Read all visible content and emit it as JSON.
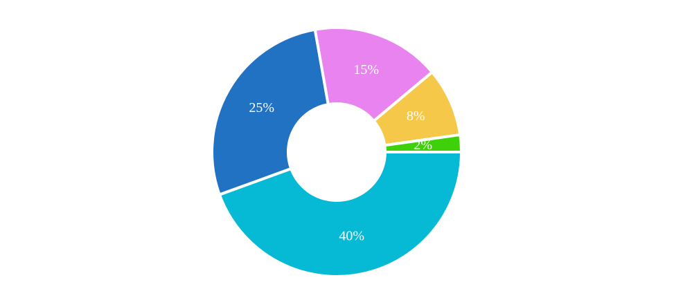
{
  "chart_data": {
    "type": "pie",
    "values": [
      40,
      25,
      15,
      8,
      2
    ],
    "value_labels": [
      "40%",
      "25%",
      "15%",
      "8%",
      "2%"
    ],
    "colors": [
      "#06b9d4",
      "#2272c4",
      "#e883f0",
      "#f5c84a",
      "#3ed10a"
    ]
  }
}
